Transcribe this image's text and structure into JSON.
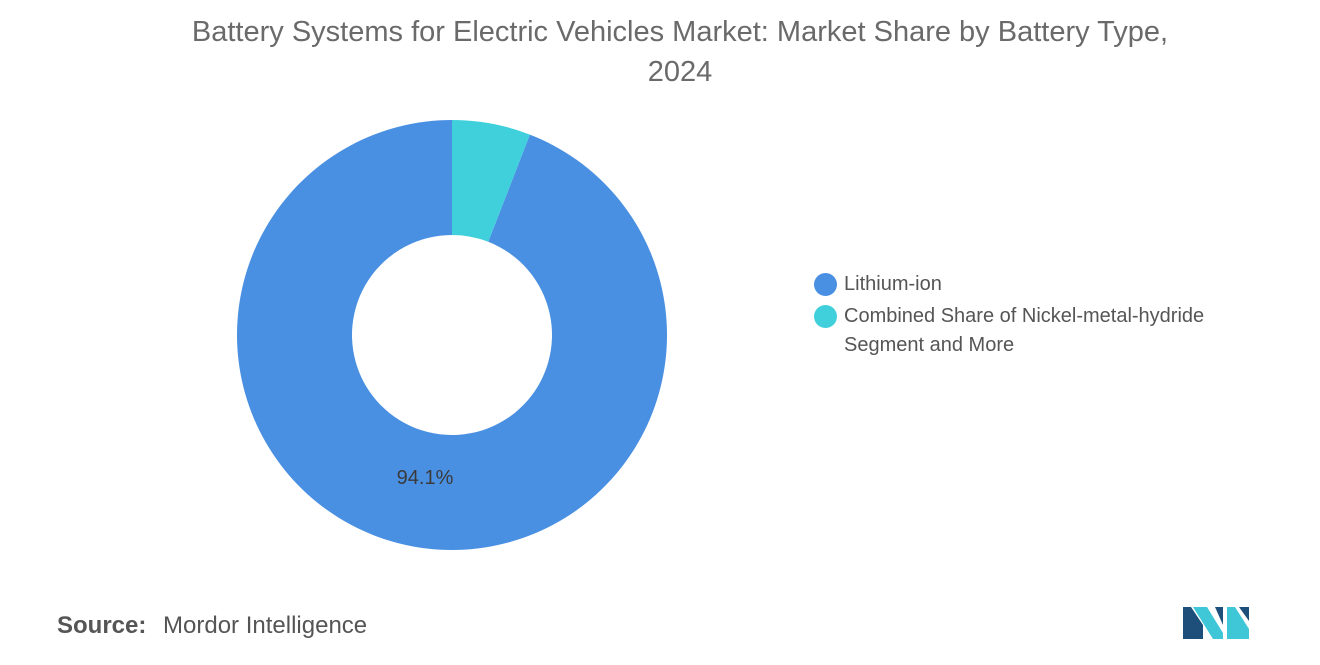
{
  "chart_data": {
    "type": "pie",
    "variant": "donut",
    "title_lines": [
      "Battery Systems for Electric Vehicles Market: Market Share by Battery Type,",
      "2024"
    ],
    "slices": [
      {
        "label": "Lithium-ion",
        "value": 94.1,
        "color": "#4a90e2",
        "data_label": "94.1%"
      },
      {
        "label": "Combined Share of Nickel-metal-hydride Segment and More",
        "value": 5.9,
        "color": "#40d0dc",
        "data_label": ""
      }
    ],
    "legend": {
      "placement": "right",
      "entries": [
        {
          "line1": "Lithium-ion",
          "line2": "",
          "color": "#4a90e2"
        },
        {
          "line1": "Combined Share of Nickel-metal-hydride",
          "line2": "Segment and More",
          "color": "#40d0dc"
        }
      ]
    }
  },
  "source": {
    "label": "Source:",
    "text": "Mordor Intelligence"
  },
  "logo": {
    "icon": "mordor-intelligence-logo-icon",
    "color_dark": "#1e4f7a",
    "color_light": "#3fc7d8"
  }
}
